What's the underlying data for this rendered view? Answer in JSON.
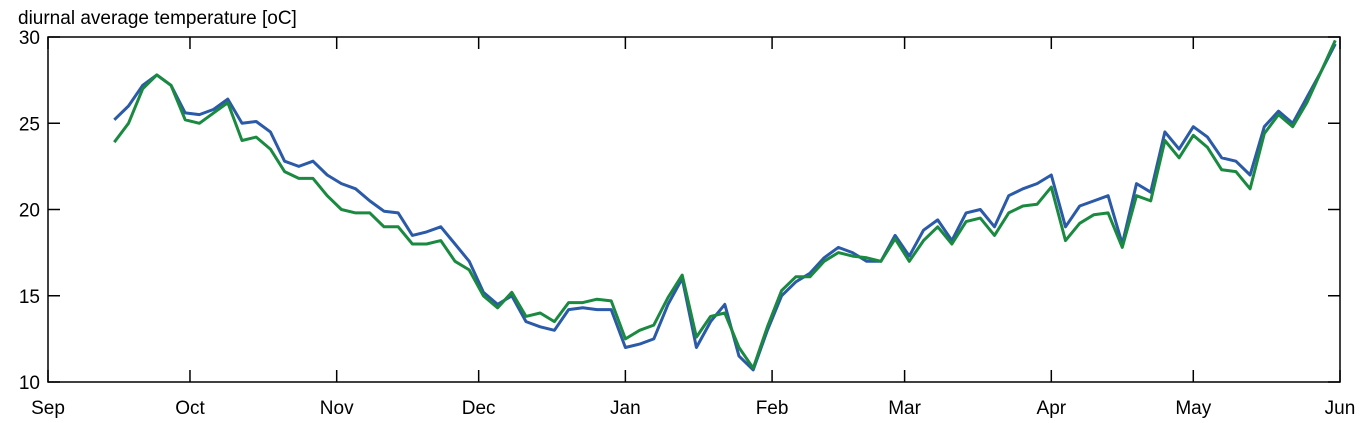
{
  "chart_data": {
    "type": "line",
    "title": "diurnal average temperature [oC]",
    "xlim": [
      0,
      273
    ],
    "xticks": [
      {
        "value": 0,
        "label": "Sep"
      },
      {
        "value": 30,
        "label": "Oct"
      },
      {
        "value": 61,
        "label": "Nov"
      },
      {
        "value": 91,
        "label": "Dec"
      },
      {
        "value": 122,
        "label": "Jan"
      },
      {
        "value": 153,
        "label": "Feb"
      },
      {
        "value": 181,
        "label": "Mar"
      },
      {
        "value": 212,
        "label": "Apr"
      },
      {
        "value": 242,
        "label": "May"
      },
      {
        "value": 273,
        "label": "Jun"
      }
    ],
    "ylim": [
      10,
      30
    ],
    "yticks": [
      10,
      15,
      20,
      25,
      30
    ],
    "x": [
      14,
      17,
      20,
      23,
      26,
      29,
      32,
      35,
      38,
      41,
      44,
      47,
      50,
      53,
      56,
      59,
      62,
      65,
      68,
      71,
      74,
      77,
      80,
      83,
      86,
      89,
      92,
      95,
      98,
      101,
      104,
      107,
      110,
      113,
      116,
      119,
      122,
      125,
      128,
      131,
      134,
      137,
      140,
      143,
      146,
      149,
      152,
      155,
      158,
      161,
      164,
      167,
      170,
      173,
      176,
      179,
      182,
      185,
      188,
      191,
      194,
      197,
      200,
      203,
      206,
      209,
      212,
      215,
      218,
      221,
      224,
      227,
      230,
      233,
      236,
      239,
      242,
      245,
      248,
      251,
      254,
      257,
      260,
      263,
      266,
      269,
      272
    ],
    "series": [
      {
        "color": "#2a5aa8",
        "values": [
          25.2,
          26.0,
          27.2,
          27.8,
          27.2,
          25.6,
          25.5,
          25.8,
          26.4,
          25.0,
          25.1,
          24.5,
          22.8,
          22.5,
          22.8,
          22.0,
          21.5,
          21.2,
          20.5,
          19.9,
          19.8,
          18.5,
          18.7,
          19.0,
          18.0,
          17.0,
          15.2,
          14.5,
          15.0,
          13.5,
          13.2,
          13.0,
          14.2,
          14.3,
          14.2,
          14.2,
          12.0,
          12.2,
          12.5,
          14.5,
          16.0,
          12.0,
          13.5,
          14.5,
          11.5,
          10.7,
          13.0,
          15.0,
          15.8,
          16.3,
          17.2,
          17.8,
          17.5,
          17.0,
          17.0,
          18.5,
          17.3,
          18.8,
          19.4,
          18.2,
          19.8,
          20.0,
          19.0,
          20.8,
          21.2,
          21.5,
          22.0,
          19.0,
          20.2,
          20.5,
          20.8,
          18.0,
          21.5,
          21.0,
          24.5,
          23.5,
          24.8,
          24.2,
          23.0,
          22.8,
          22.0,
          24.8,
          25.7,
          25.0,
          26.5,
          28.0,
          29.6
        ]
      },
      {
        "color": "#1a8a40",
        "values": [
          23.9,
          25.0,
          27.0,
          27.8,
          27.2,
          25.2,
          25.0,
          25.6,
          26.2,
          24.0,
          24.2,
          23.5,
          22.2,
          21.8,
          21.8,
          20.8,
          20.0,
          19.8,
          19.8,
          19.0,
          19.0,
          18.0,
          18.0,
          18.2,
          17.0,
          16.5,
          15.0,
          14.3,
          15.2,
          13.8,
          14.0,
          13.5,
          14.6,
          14.6,
          14.8,
          14.7,
          12.5,
          13.0,
          13.3,
          14.9,
          16.2,
          12.6,
          13.8,
          14.0,
          12.0,
          10.8,
          13.2,
          15.3,
          16.1,
          16.1,
          17.0,
          17.5,
          17.3,
          17.2,
          17.0,
          18.3,
          17.0,
          18.2,
          19.0,
          18.0,
          19.3,
          19.5,
          18.5,
          19.8,
          20.2,
          20.3,
          21.3,
          18.2,
          19.2,
          19.7,
          19.8,
          17.8,
          20.8,
          20.5,
          24.0,
          23.0,
          24.3,
          23.6,
          22.3,
          22.2,
          21.2,
          24.4,
          25.5,
          24.8,
          26.2,
          28.0,
          29.8
        ]
      }
    ]
  }
}
